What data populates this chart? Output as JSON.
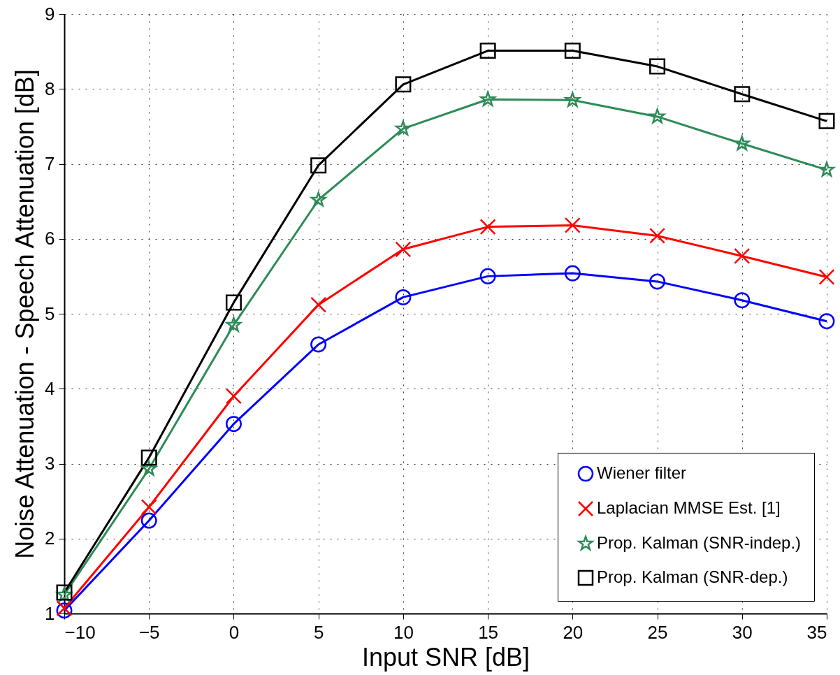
{
  "chart_data": {
    "type": "line",
    "xlabel": "Input SNR [dB]",
    "ylabel": "Noise Attenuation - Speech Attenuation [dB]",
    "x": [
      -10,
      -5,
      0,
      5,
      10,
      15,
      20,
      25,
      30,
      35
    ],
    "series": [
      {
        "name": "Wiener filter",
        "color": "#0000ff",
        "marker": "circle",
        "values": [
          1.04,
          2.24,
          3.53,
          4.59,
          5.22,
          5.5,
          5.54,
          5.43,
          5.18,
          4.9
        ]
      },
      {
        "name": "Laplacian MMSE Est. [1]",
        "color": "#ff0000",
        "marker": "cross",
        "values": [
          1.07,
          2.42,
          3.9,
          5.12,
          5.86,
          6.16,
          6.18,
          6.04,
          5.77,
          5.49
        ]
      },
      {
        "name": "Prop. Kalman (SNR-indep.)",
        "color": "#2e8b57",
        "marker": "star",
        "values": [
          1.25,
          2.93,
          4.85,
          6.52,
          7.47,
          7.86,
          7.85,
          7.63,
          7.27,
          6.92
        ]
      },
      {
        "name": "Prop. Kalman (SNR-dep.)",
        "color": "#000000",
        "marker": "square",
        "values": [
          1.28,
          3.08,
          5.15,
          6.98,
          8.06,
          8.51,
          8.51,
          8.3,
          7.93,
          7.57
        ]
      }
    ],
    "xlim": [
      -10,
      35
    ],
    "xticks": [
      -10,
      -5,
      0,
      5,
      10,
      15,
      20,
      25,
      30,
      35
    ],
    "ylim": [
      1,
      9
    ],
    "yticks": [
      1,
      2,
      3,
      4,
      5,
      6,
      7,
      8,
      9
    ],
    "grid": true,
    "legend": "bottom right",
    "line_style": "solid"
  }
}
